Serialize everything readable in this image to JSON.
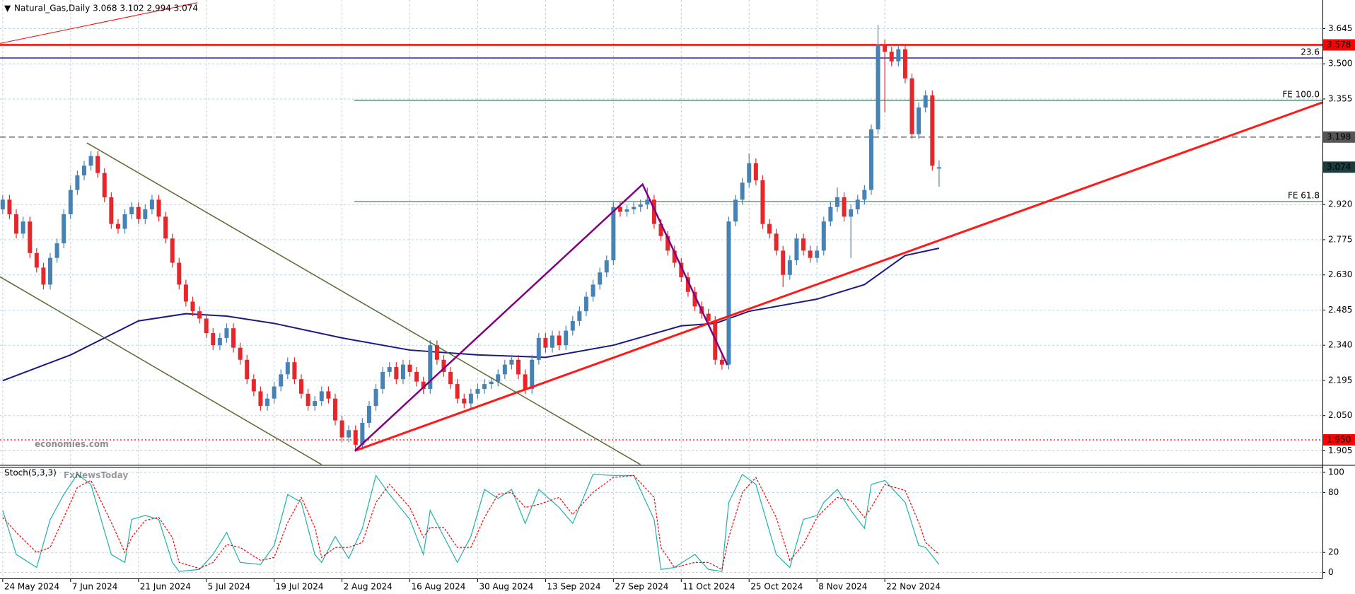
{
  "chart_data": {
    "type": "candlestick",
    "title": "Natural_Gas,Daily  3.068 3.102 2.994 3.074",
    "watermarks": [
      "economies.com",
      "FxNewsToday"
    ],
    "bull_color": "#4682b4",
    "bear_color": "#e8262a",
    "xlim": [
      -0.4,
      194.5
    ],
    "xticks": [
      {
        "value": 0,
        "label": "24 May 2024"
      },
      {
        "value": 10,
        "label": "7 Jun 2024"
      },
      {
        "value": 20,
        "label": "21 Jun 2024"
      },
      {
        "value": 30,
        "label": "5 Jul 2024"
      },
      {
        "value": 40,
        "label": "19 Jul 2024"
      },
      {
        "value": 50,
        "label": "2 Aug 2024"
      },
      {
        "value": 60,
        "label": "16 Aug 2024"
      },
      {
        "value": 70,
        "label": "30 Aug 2024"
      },
      {
        "value": 80,
        "label": "13 Sep 2024"
      },
      {
        "value": 90,
        "label": "27 Sep 2024"
      },
      {
        "value": 100,
        "label": "11 Oct 2024"
      },
      {
        "value": 110,
        "label": "25 Oct 2024"
      },
      {
        "value": 120,
        "label": "8 Nov 2024"
      },
      {
        "value": 130,
        "label": "22 Nov 2024"
      }
    ],
    "ylim": [
      1.848,
      3.763
    ],
    "yticks": [
      3.645,
      {
        "value": 3.5,
        "label": "3.500"
      },
      3.355,
      {
        "value": 2.92,
        "label": "2.920"
      },
      2.775,
      {
        "value": 2.63,
        "label": "2.630"
      },
      2.485,
      {
        "value": 2.34,
        "label": "2.340"
      },
      2.195,
      {
        "value": 2.05,
        "label": "2.050"
      },
      1.905
    ],
    "grid": true,
    "open": [
      2.9,
      2.94,
      2.88,
      2.8,
      2.85,
      2.72,
      2.66,
      2.59,
      2.7,
      2.76,
      2.88,
      2.98,
      3.04,
      3.08,
      3.12,
      3.05,
      2.95,
      2.84,
      2.82,
      2.88,
      2.91,
      2.86,
      2.9,
      2.94,
      2.87,
      2.78,
      2.68,
      2.59,
      2.52,
      2.48,
      2.45,
      2.39,
      2.34,
      2.37,
      2.41,
      2.33,
      2.28,
      2.2,
      2.15,
      2.09,
      2.12,
      2.17,
      2.22,
      2.27,
      2.2,
      2.14,
      2.09,
      2.11,
      2.15,
      2.12,
      2.03,
      1.96,
      1.99,
      1.93,
      2.02,
      2.09,
      2.16,
      2.23,
      2.25,
      2.2,
      2.26,
      2.23,
      2.19,
      2.16,
      2.34,
      2.28,
      2.23,
      2.18,
      2.12,
      2.1,
      2.14,
      2.16,
      2.18,
      2.19,
      2.22,
      2.26,
      2.28,
      2.22,
      2.16,
      2.28,
      2.37,
      2.33,
      2.38,
      2.34,
      2.4,
      2.44,
      2.48,
      2.54,
      2.59,
      2.64,
      2.69,
      2.91,
      2.89,
      2.9,
      2.91,
      2.92,
      2.94,
      2.84,
      2.79,
      2.73,
      2.68,
      2.62,
      2.56,
      2.5,
      2.47,
      2.44,
      2.28,
      2.26,
      2.85,
      2.94,
      3.01,
      3.09,
      3.02,
      2.84,
      2.8,
      2.73,
      2.63,
      2.69,
      2.78,
      2.73,
      2.7,
      2.73,
      2.85,
      2.91,
      2.95,
      2.87,
      2.9,
      2.94,
      2.98,
      3.23,
      3.58,
      3.55,
      3.51,
      3.56,
      3.44,
      3.21,
      3.32,
      3.37,
      3.068
    ],
    "high": [
      2.96,
      2.96,
      2.9,
      2.87,
      2.87,
      2.74,
      2.68,
      2.72,
      2.78,
      2.9,
      3.0,
      3.06,
      3.1,
      3.14,
      3.14,
      3.07,
      2.97,
      2.86,
      2.9,
      2.93,
      2.93,
      2.92,
      2.96,
      2.96,
      2.89,
      2.8,
      2.7,
      2.61,
      2.54,
      2.5,
      2.47,
      2.41,
      2.39,
      2.43,
      2.43,
      2.35,
      2.3,
      2.22,
      2.17,
      2.14,
      2.19,
      2.24,
      2.29,
      2.29,
      2.22,
      2.16,
      2.13,
      2.17,
      2.17,
      2.14,
      2.05,
      2.01,
      2.01,
      2.04,
      2.11,
      2.18,
      2.25,
      2.27,
      2.27,
      2.28,
      2.28,
      2.25,
      2.21,
      2.36,
      2.36,
      2.3,
      2.25,
      2.2,
      2.14,
      2.16,
      2.18,
      2.2,
      2.21,
      2.24,
      2.28,
      2.3,
      2.3,
      2.24,
      2.3,
      2.39,
      2.39,
      2.4,
      2.4,
      2.42,
      2.46,
      2.5,
      2.56,
      2.61,
      2.66,
      2.71,
      2.93,
      2.93,
      2.92,
      2.93,
      2.94,
      2.99,
      2.96,
      2.86,
      2.81,
      2.75,
      2.7,
      2.64,
      2.58,
      2.52,
      2.49,
      2.46,
      2.3,
      2.87,
      2.96,
      3.03,
      3.13,
      3.11,
      3.04,
      2.86,
      2.82,
      2.75,
      2.71,
      2.8,
      2.8,
      2.75,
      2.75,
      2.87,
      2.93,
      2.99,
      2.97,
      2.92,
      2.96,
      3.0,
      3.25,
      3.66,
      3.6,
      3.57,
      3.58,
      3.58,
      3.46,
      3.34,
      3.39,
      3.39,
      3.102
    ],
    "low": [
      2.88,
      2.86,
      2.78,
      2.78,
      2.7,
      2.64,
      2.57,
      2.57,
      2.68,
      2.74,
      2.86,
      2.96,
      3.02,
      3.06,
      3.03,
      2.93,
      2.82,
      2.8,
      2.8,
      2.86,
      2.84,
      2.84,
      2.88,
      2.85,
      2.76,
      2.66,
      2.57,
      2.5,
      2.46,
      2.43,
      2.37,
      2.32,
      2.32,
      2.35,
      2.31,
      2.26,
      2.18,
      2.13,
      2.07,
      2.07,
      2.1,
      2.15,
      2.2,
      2.18,
      2.12,
      2.07,
      2.07,
      2.09,
      2.1,
      2.01,
      1.94,
      1.94,
      1.91,
      1.91,
      2.0,
      2.07,
      2.14,
      2.21,
      2.18,
      2.18,
      2.21,
      2.17,
      2.14,
      2.14,
      2.26,
      2.21,
      2.16,
      2.1,
      2.08,
      2.08,
      2.12,
      2.14,
      2.16,
      2.17,
      2.2,
      2.24,
      2.2,
      2.14,
      2.14,
      2.26,
      2.31,
      2.31,
      2.32,
      2.32,
      2.38,
      2.42,
      2.46,
      2.52,
      2.57,
      2.62,
      2.67,
      2.87,
      2.87,
      2.88,
      2.89,
      2.9,
      2.82,
      2.77,
      2.71,
      2.66,
      2.6,
      2.54,
      2.48,
      2.45,
      2.42,
      2.26,
      2.24,
      2.24,
      2.83,
      2.92,
      2.99,
      3.0,
      2.82,
      2.78,
      2.71,
      2.58,
      2.61,
      2.67,
      2.71,
      2.68,
      2.68,
      2.71,
      2.83,
      2.89,
      2.85,
      2.7,
      2.88,
      2.92,
      2.96,
      3.21,
      3.3,
      3.49,
      3.49,
      3.42,
      3.19,
      3.19,
      3.3,
      3.06,
      2.994
    ],
    "close": [
      2.94,
      2.88,
      2.8,
      2.85,
      2.72,
      2.66,
      2.59,
      2.7,
      2.76,
      2.88,
      2.98,
      3.04,
      3.08,
      3.12,
      3.05,
      2.95,
      2.84,
      2.82,
      2.88,
      2.91,
      2.86,
      2.9,
      2.94,
      2.87,
      2.78,
      2.68,
      2.59,
      2.52,
      2.48,
      2.45,
      2.39,
      2.34,
      2.37,
      2.41,
      2.33,
      2.28,
      2.2,
      2.15,
      2.09,
      2.12,
      2.17,
      2.22,
      2.27,
      2.2,
      2.14,
      2.09,
      2.11,
      2.15,
      2.12,
      2.03,
      1.96,
      1.99,
      1.93,
      2.02,
      2.09,
      2.16,
      2.23,
      2.25,
      2.2,
      2.26,
      2.23,
      2.19,
      2.16,
      2.34,
      2.28,
      2.23,
      2.18,
      2.12,
      2.1,
      2.14,
      2.16,
      2.18,
      2.19,
      2.22,
      2.26,
      2.28,
      2.22,
      2.16,
      2.28,
      2.37,
      2.33,
      2.38,
      2.34,
      2.4,
      2.44,
      2.48,
      2.54,
      2.59,
      2.64,
      2.69,
      2.91,
      2.89,
      2.9,
      2.91,
      2.92,
      2.94,
      2.84,
      2.79,
      2.73,
      2.68,
      2.62,
      2.56,
      2.5,
      2.47,
      2.44,
      2.28,
      2.26,
      2.85,
      2.94,
      3.01,
      3.09,
      3.02,
      2.84,
      2.8,
      2.73,
      2.63,
      2.69,
      2.78,
      2.73,
      2.7,
      2.73,
      2.85,
      2.91,
      2.95,
      2.87,
      2.9,
      2.94,
      2.98,
      3.23,
      3.58,
      3.55,
      3.51,
      3.56,
      3.44,
      3.21,
      3.32,
      3.37,
      3.08,
      3.074
    ],
    "current_color": "#1c3b3b",
    "ma": {
      "color": "#1a1a80",
      "index": [
        0,
        10,
        20,
        27,
        33,
        40,
        50,
        60,
        70,
        80,
        90,
        100,
        105,
        110,
        120,
        127,
        133,
        138
      ],
      "values": [
        2.194,
        2.3,
        2.44,
        2.47,
        2.46,
        2.43,
        2.37,
        2.32,
        2.3,
        2.29,
        2.34,
        2.42,
        2.43,
        2.48,
        2.53,
        2.59,
        2.71,
        2.74
      ]
    },
    "levels": [
      {
        "value": 3.578,
        "color": "#ff0000",
        "style": "solid",
        "box": true
      },
      {
        "value": 3.524,
        "label": "23.6",
        "color": "#000080",
        "style": "solid"
      },
      {
        "value": 3.349,
        "label": "FE 100.0",
        "color": "#2e8b57",
        "style": "solid",
        "from": 51.8
      },
      {
        "value": 3.198,
        "color": "#555555",
        "style": "dashed",
        "box": true
      },
      {
        "value": 2.932,
        "label": "FE 61.8",
        "color": "#2e8b57",
        "style": "solid",
        "from": 51.8
      },
      {
        "value": 1.95,
        "label": "1.950",
        "color": "#ff0000",
        "style": "dotted",
        "box": true
      }
    ],
    "lines": [
      {
        "x": [
          -0.4,
          28.7
        ],
        "y": [
          3.584,
          3.752
        ],
        "color": "#ff0000",
        "width": 1
      },
      {
        "x": [
          51.9,
          194.5
        ],
        "y": [
          1.905,
          3.341
        ],
        "color": "#ff1a1a",
        "width": 3
      },
      {
        "x": [
          12.4,
          94
        ],
        "y": [
          3.174,
          1.848
        ],
        "color": "#556b2f",
        "width": 1.5
      },
      {
        "x": [
          -0.4,
          47
        ],
        "y": [
          2.622,
          1.848
        ],
        "color": "#556b2f",
        "width": 1.5
      },
      {
        "x": [
          51.9,
          94.3,
          106.8
        ],
        "y": [
          1.905,
          3.003,
          2.258
        ],
        "color": "#800080",
        "width": 2.5
      }
    ],
    "stoch": {
      "title": "Stoch(5,3,3)",
      "ylim": [
        -6,
        105
      ],
      "yticks": [
        0,
        20,
        80,
        100
      ],
      "index": [
        0,
        2,
        5,
        7,
        9,
        11,
        13,
        16,
        18,
        19,
        21,
        23,
        25,
        26,
        29,
        31,
        33,
        35,
        38,
        40,
        42,
        44,
        46,
        47,
        49,
        51,
        53,
        55,
        57,
        60,
        62,
        63,
        65,
        67,
        69,
        71,
        73,
        75,
        77,
        79,
        82,
        84,
        87,
        90,
        93,
        96,
        97,
        99,
        102,
        104,
        106,
        107,
        109,
        111,
        114,
        116,
        118,
        120,
        121,
        123,
        125,
        127,
        128,
        130,
        133,
        135,
        136,
        138
      ],
      "series": [
        {
          "color": "#20b2aa",
          "dash": false,
          "values": [
            62,
            18,
            5,
            53,
            78,
            98,
            88,
            18,
            10,
            53,
            57,
            53,
            10,
            1,
            3,
            18,
            40,
            10,
            8,
            27,
            78,
            70,
            18,
            10,
            36,
            14,
            44,
            97,
            78,
            53,
            18,
            62,
            36,
            10,
            36,
            83,
            74,
            83,
            49,
            83,
            65,
            49,
            98,
            97,
            97,
            53,
            3,
            5,
            18,
            3,
            1,
            70,
            98,
            88,
            18,
            5,
            53,
            57,
            70,
            83,
            62,
            44,
            88,
            92,
            70,
            27,
            25,
            8
          ]
        },
        {
          "color": "#ff0000",
          "dash": true,
          "values": [
            55,
            40,
            20,
            25,
            55,
            85,
            92,
            50,
            20,
            35,
            52,
            55,
            35,
            10,
            4,
            10,
            28,
            25,
            12,
            15,
            50,
            75,
            45,
            15,
            25,
            25,
            30,
            70,
            88,
            65,
            35,
            45,
            45,
            25,
            25,
            55,
            78,
            80,
            65,
            68,
            75,
            58,
            80,
            95,
            97,
            75,
            25,
            5,
            10,
            10,
            3,
            35,
            80,
            95,
            55,
            12,
            28,
            55,
            62,
            75,
            72,
            55,
            65,
            88,
            82,
            50,
            30,
            18
          ]
        }
      ]
    }
  }
}
